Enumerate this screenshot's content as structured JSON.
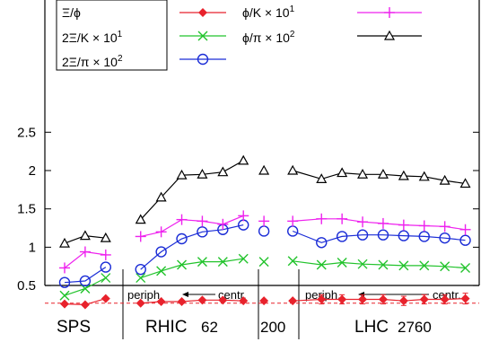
{
  "chart_data": {
    "type": "line",
    "ylim": [
      0,
      3.0
    ],
    "yticks": [
      "0.5",
      "1",
      "1.5",
      "2",
      "2.5"
    ],
    "ytick_values": [
      0.5,
      1.0,
      1.5,
      2.0,
      2.5
    ],
    "grid": false,
    "legend_position": "top",
    "x": [
      0,
      1,
      2,
      3.7,
      4.7,
      5.7,
      6.7,
      7.7,
      8.7,
      9.7,
      11.1,
      12.5,
      13.5,
      14.5,
      15.5,
      16.5,
      17.5,
      18.5,
      19.5
    ],
    "groups": [
      {
        "label": "SPS",
        "number": ""
      },
      {
        "label": "RHIC",
        "number": "62"
      },
      {
        "label": "",
        "number": "200"
      },
      {
        "label": "LHC",
        "number": "2760"
      }
    ],
    "centrality_labels": {
      "rhic": {
        "left": "periph.",
        "right": "centr."
      },
      "lhc": {
        "left": "periph.",
        "right": "centr."
      }
    },
    "reference_line": {
      "y": 0.27,
      "color": "#e8222c",
      "style": "dashed"
    },
    "series": [
      {
        "name": "Ξ/ϕ",
        "name_base": "Ξ/ϕ",
        "name_exp": "",
        "color": "#e8222c",
        "marker": "diamond",
        "values": [
          0.26,
          0.25,
          0.33,
          0.27,
          0.29,
          0.29,
          0.31,
          0.31,
          0.3,
          0.3,
          0.3,
          0.32,
          0.32,
          0.32,
          0.32,
          0.3,
          0.32,
          0.32,
          0.33
        ],
        "errors": [
          0,
          0,
          0,
          0,
          0,
          0,
          0,
          0,
          0,
          0,
          0,
          0.06,
          0.06,
          0.06,
          0.06,
          0.06,
          0.06,
          0.06,
          0.07
        ]
      },
      {
        "name": "2Ξ/K × 10¹",
        "name_base": "2Ξ/K × 10",
        "name_exp": "1",
        "color": "#22c32c",
        "marker": "x",
        "values": [
          0.37,
          0.46,
          0.6,
          0.6,
          0.69,
          0.77,
          0.81,
          0.81,
          0.85,
          0.81,
          0.82,
          0.77,
          0.8,
          0.78,
          0.77,
          0.76,
          0.76,
          0.75,
          0.73
        ],
        "errors": []
      },
      {
        "name": "2Ξ/π × 10²",
        "name_base": "2Ξ/π × 10",
        "name_exp": "2",
        "color": "#1a2cd6",
        "marker": "circle",
        "values": [
          0.54,
          0.56,
          0.74,
          0.71,
          0.94,
          1.11,
          1.2,
          1.23,
          1.29,
          1.21,
          1.21,
          1.06,
          1.14,
          1.16,
          1.16,
          1.15,
          1.14,
          1.12,
          1.09
        ],
        "errors": []
      },
      {
        "name": "ϕ/K × 10¹",
        "name_base": "ϕ/K × 10",
        "name_exp": "1",
        "color": "#ee22ee",
        "marker": "plus",
        "values": [
          0.73,
          0.94,
          0.9,
          1.14,
          1.2,
          1.36,
          1.34,
          1.3,
          1.41,
          1.34,
          1.34,
          1.37,
          1.37,
          1.33,
          1.31,
          1.29,
          1.28,
          1.27,
          1.23
        ],
        "errors": []
      },
      {
        "name": "ϕ/π × 10²",
        "name_base": "ϕ/π × 10",
        "name_exp": "2",
        "color": "#000000",
        "marker": "triangle",
        "values": [
          1.05,
          1.15,
          1.12,
          1.36,
          1.65,
          1.94,
          1.95,
          1.98,
          2.13,
          2.0,
          2.0,
          1.89,
          1.97,
          1.95,
          1.95,
          1.93,
          1.92,
          1.87,
          1.83
        ],
        "errors": []
      }
    ]
  }
}
